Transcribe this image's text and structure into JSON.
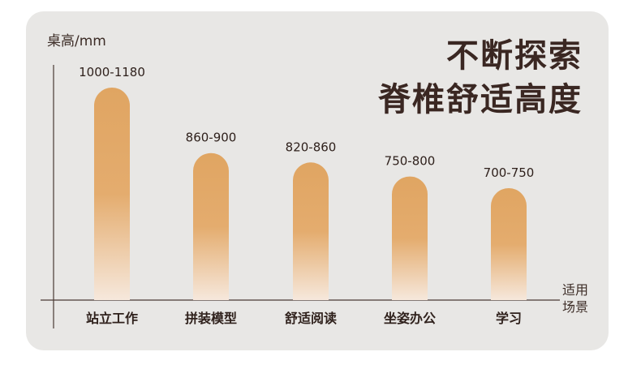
{
  "headline": {
    "line1": "不断探索",
    "line2": "脊椎舒适高度"
  },
  "chart_data": {
    "type": "bar",
    "ylabel": "桌高/mm",
    "xlabel": "适用场景",
    "categories": [
      "站立工作",
      "拼装模型",
      "舒适阅读",
      "坐姿办公",
      "学习"
    ],
    "series": [
      {
        "ranges": [
          [
            1000,
            1180
          ],
          [
            860,
            900
          ],
          [
            820,
            860
          ],
          [
            750,
            800
          ],
          [
            700,
            750
          ]
        ]
      }
    ],
    "data_labels": [
      "1000-1180",
      "860-900",
      "820-860",
      "750-800",
      "700-750"
    ],
    "colors": {
      "bar_top": "#e0a562",
      "bar_bottom": "#f6e8dc",
      "axis": "#4a3a34",
      "text": "#2f211c"
    },
    "grid": false,
    "legend": "none"
  }
}
